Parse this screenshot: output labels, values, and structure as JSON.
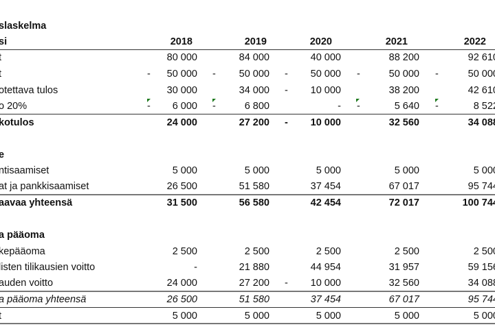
{
  "title": "slaskelma",
  "years": [
    "2018",
    "2019",
    "2020",
    "2021",
    "2022"
  ],
  "header_label": "si",
  "income": [
    {
      "label": "t",
      "cells": [
        [
          "",
          "80 000"
        ],
        [
          "",
          "84 000"
        ],
        [
          "",
          "40 000"
        ],
        [
          "",
          "88 200"
        ],
        [
          "",
          "92 610"
        ]
      ]
    },
    {
      "label": "t",
      "cells": [
        [
          "-",
          "50 000"
        ],
        [
          "-",
          "50 000"
        ],
        [
          "-",
          "50 000"
        ],
        [
          "-",
          "50 000"
        ],
        [
          "-",
          "50 000"
        ]
      ]
    },
    {
      "label": "otettava tulos",
      "cells": [
        [
          "",
          "30 000"
        ],
        [
          "",
          "34 000"
        ],
        [
          "-",
          "10 000"
        ],
        [
          "",
          "38 200"
        ],
        [
          "",
          "42 610"
        ]
      ]
    },
    {
      "label": "o 20%",
      "cells": [
        [
          "-",
          "6 000"
        ],
        [
          "-",
          "6 800"
        ],
        [
          "",
          "-"
        ],
        [
          "-",
          "5 640"
        ],
        [
          "-",
          "8 522"
        ]
      ]
    },
    {
      "label": "kotulos",
      "cells": [
        [
          "",
          "24 000"
        ],
        [
          "",
          "27 200"
        ],
        [
          "-",
          "10 000"
        ],
        [
          "",
          "32 560"
        ],
        [
          "",
          "34 088"
        ]
      ]
    }
  ],
  "assets_title": "e",
  "assets": [
    {
      "label": "ntisaamiset",
      "cells": [
        [
          "",
          "5 000"
        ],
        [
          "",
          "5 000"
        ],
        [
          "",
          "5 000"
        ],
        [
          "",
          "5 000"
        ],
        [
          "",
          "5 000"
        ]
      ]
    },
    {
      "label": "at ja pankkisaamiset",
      "cells": [
        [
          "",
          "26 500"
        ],
        [
          "",
          "51 580"
        ],
        [
          "",
          "37 454"
        ],
        [
          "",
          "67 017"
        ],
        [
          "",
          "95 744"
        ]
      ]
    },
    {
      "label": "aavaa yhteensä",
      "cells": [
        [
          "",
          "31 500"
        ],
        [
          "",
          "56 580"
        ],
        [
          "",
          "42 454"
        ],
        [
          "",
          "72 017"
        ],
        [
          "",
          "100 744"
        ]
      ]
    }
  ],
  "equity_title": "a pääoma",
  "equity": [
    {
      "label": "kepääoma",
      "cells": [
        [
          "",
          "2 500"
        ],
        [
          "",
          "2 500"
        ],
        [
          "",
          "2 500"
        ],
        [
          "",
          "2 500"
        ],
        [
          "",
          "2 500"
        ]
      ]
    },
    {
      "label": "listen tilikausien voitto",
      "cells": [
        [
          "",
          "-"
        ],
        [
          "",
          "21 880"
        ],
        [
          "",
          "44 954"
        ],
        [
          "",
          "31 957"
        ],
        [
          "",
          "59 156"
        ]
      ]
    },
    {
      "label": "auden voitto",
      "cells": [
        [
          "",
          "24 000"
        ],
        [
          "",
          "27 200"
        ],
        [
          "-",
          "10 000"
        ],
        [
          "",
          "32 560"
        ],
        [
          "",
          "34 088"
        ]
      ]
    },
    {
      "label": "a pääoma yhteensä",
      "cells": [
        [
          "",
          "26 500"
        ],
        [
          "",
          "51 580"
        ],
        [
          "",
          "37 454"
        ],
        [
          "",
          "67 017"
        ],
        [
          "",
          "95 744"
        ]
      ]
    },
    {
      "label": "t",
      "cells": [
        [
          "",
          "5 000"
        ],
        [
          "",
          "5 000"
        ],
        [
          "",
          "5 000"
        ],
        [
          "",
          "5 000"
        ],
        [
          "",
          "5 000"
        ]
      ]
    }
  ],
  "colors": {
    "comment_indicator": "#1e7a1e"
  }
}
